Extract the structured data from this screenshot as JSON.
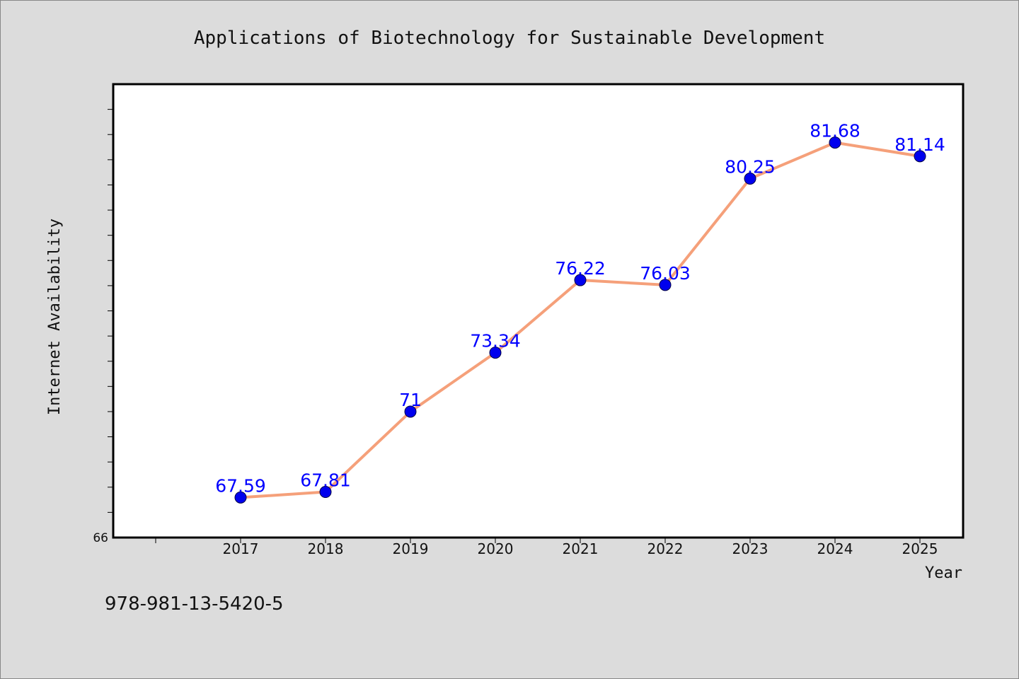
{
  "chart_data": {
    "type": "line",
    "title": "Applications of Biotechnology for Sustainable Development",
    "xlabel": "Year",
    "ylabel": "Internet Availability",
    "categories": [
      "2017",
      "2018",
      "2019",
      "2020",
      "2021",
      "2022",
      "2023",
      "2024",
      "2025"
    ],
    "series": [
      {
        "values": [
          67.59,
          67.81,
          71,
          73.34,
          76.22,
          76.03,
          80.25,
          81.68,
          81.14
        ]
      }
    ],
    "data_labels": [
      "67.59",
      "67.81",
      "71",
      "73.34",
      "76.22",
      "76.03",
      "80.25",
      "81.68",
      "81.14"
    ],
    "ylim": [
      66,
      84
    ],
    "y_min_label": "66",
    "y_minor_tick_step": 1,
    "grid": false,
    "legend": "none",
    "colors": {
      "line": "#f5a07a",
      "marker": "#0000ee",
      "label": "#0000ff",
      "plot_bg": "#ffffff",
      "page_bg": "#dcdcdc"
    }
  },
  "footer": {
    "isbn": "978-981-13-5420-5"
  }
}
